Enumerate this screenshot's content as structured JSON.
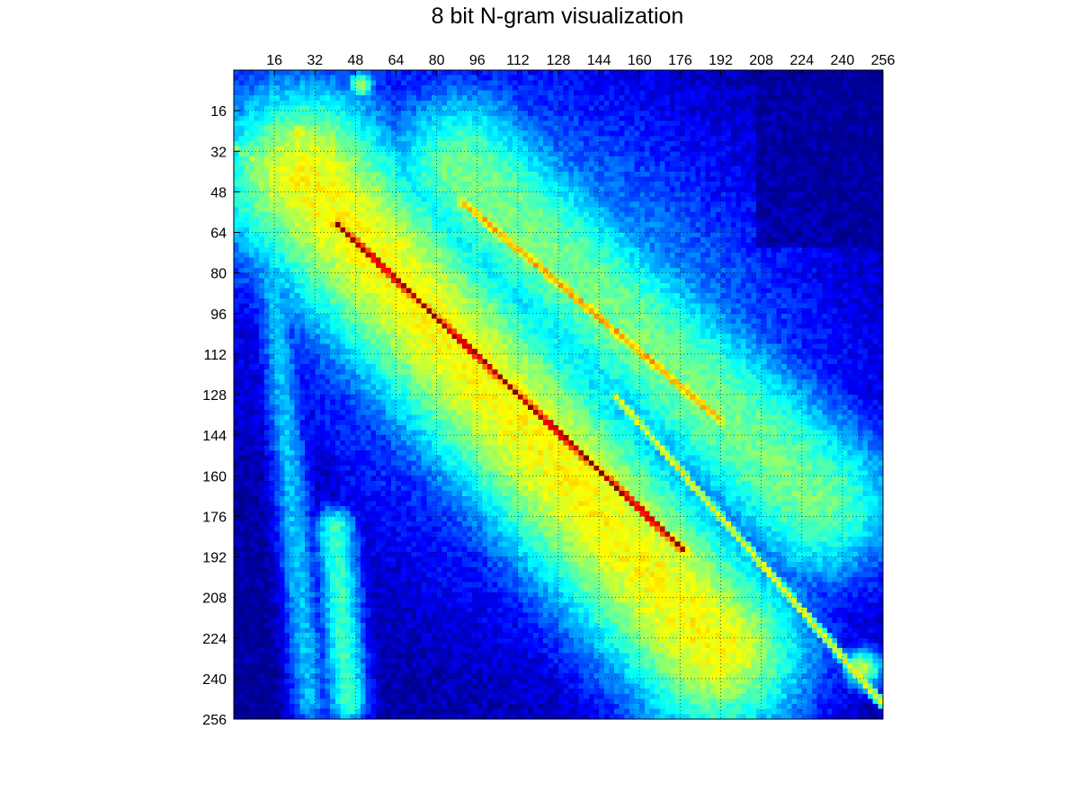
{
  "chart_data": {
    "type": "heatmap",
    "title": "8 bit N-gram visualization",
    "xlabel": "",
    "ylabel": "",
    "x_axis_position": "top",
    "y_axis_position": "left",
    "x_ticks": [
      "16",
      "32",
      "48",
      "64",
      "80",
      "96",
      "112",
      "128",
      "144",
      "160",
      "176",
      "192",
      "208",
      "224",
      "240",
      "256"
    ],
    "y_ticks": [
      "16",
      "32",
      "48",
      "64",
      "80",
      "96",
      "112",
      "128",
      "144",
      "160",
      "176",
      "192",
      "208",
      "224",
      "240",
      "256"
    ],
    "xlim": [
      0,
      256
    ],
    "ylim": [
      0,
      256
    ],
    "grid": true,
    "grid_style": "dotted",
    "colormap": "jet",
    "colormap_stops": [
      "#00008f",
      "#0000ff",
      "#00ffff",
      "#ffff00",
      "#ff0000",
      "#800000"
    ],
    "features": [
      {
        "kind": "ridge",
        "from": [
          40,
          60
        ],
        "to": [
          178,
          190
        ],
        "intensity": 0.98,
        "width": 2.2
      },
      {
        "kind": "ridge",
        "from": [
          90,
          52
        ],
        "to": [
          192,
          138
        ],
        "intensity": 0.72,
        "width": 3.0
      },
      {
        "kind": "ridge",
        "from": [
          150,
          128
        ],
        "to": [
          256,
          250
        ],
        "intensity": 0.62,
        "width": 2.2
      },
      {
        "kind": "ridge",
        "from": [
          0,
          30
        ],
        "to": [
          60,
          72
        ],
        "intensity": 0.55,
        "width": 2.0
      },
      {
        "kind": "band",
        "from": [
          28,
          42
        ],
        "to": [
          190,
          228
        ],
        "intensity": 0.62,
        "width": 40
      },
      {
        "kind": "band",
        "from": [
          90,
          40
        ],
        "to": [
          230,
          170
        ],
        "intensity": 0.48,
        "width": 36
      },
      {
        "kind": "band",
        "from": [
          40,
          180
        ],
        "to": [
          45,
          250
        ],
        "intensity": 0.42,
        "width": 9
      },
      {
        "kind": "band",
        "from": [
          12,
          40
        ],
        "to": [
          30,
          250
        ],
        "intensity": 0.3,
        "width": 8
      },
      {
        "kind": "blob",
        "center": [
          25,
          25
        ],
        "intensity": 0.65,
        "radius": 4
      },
      {
        "kind": "blob",
        "center": [
          50,
          6
        ],
        "intensity": 0.55,
        "radius": 4
      },
      {
        "kind": "blob",
        "center": [
          248,
          236
        ],
        "intensity": 0.55,
        "radius": 6
      }
    ]
  }
}
